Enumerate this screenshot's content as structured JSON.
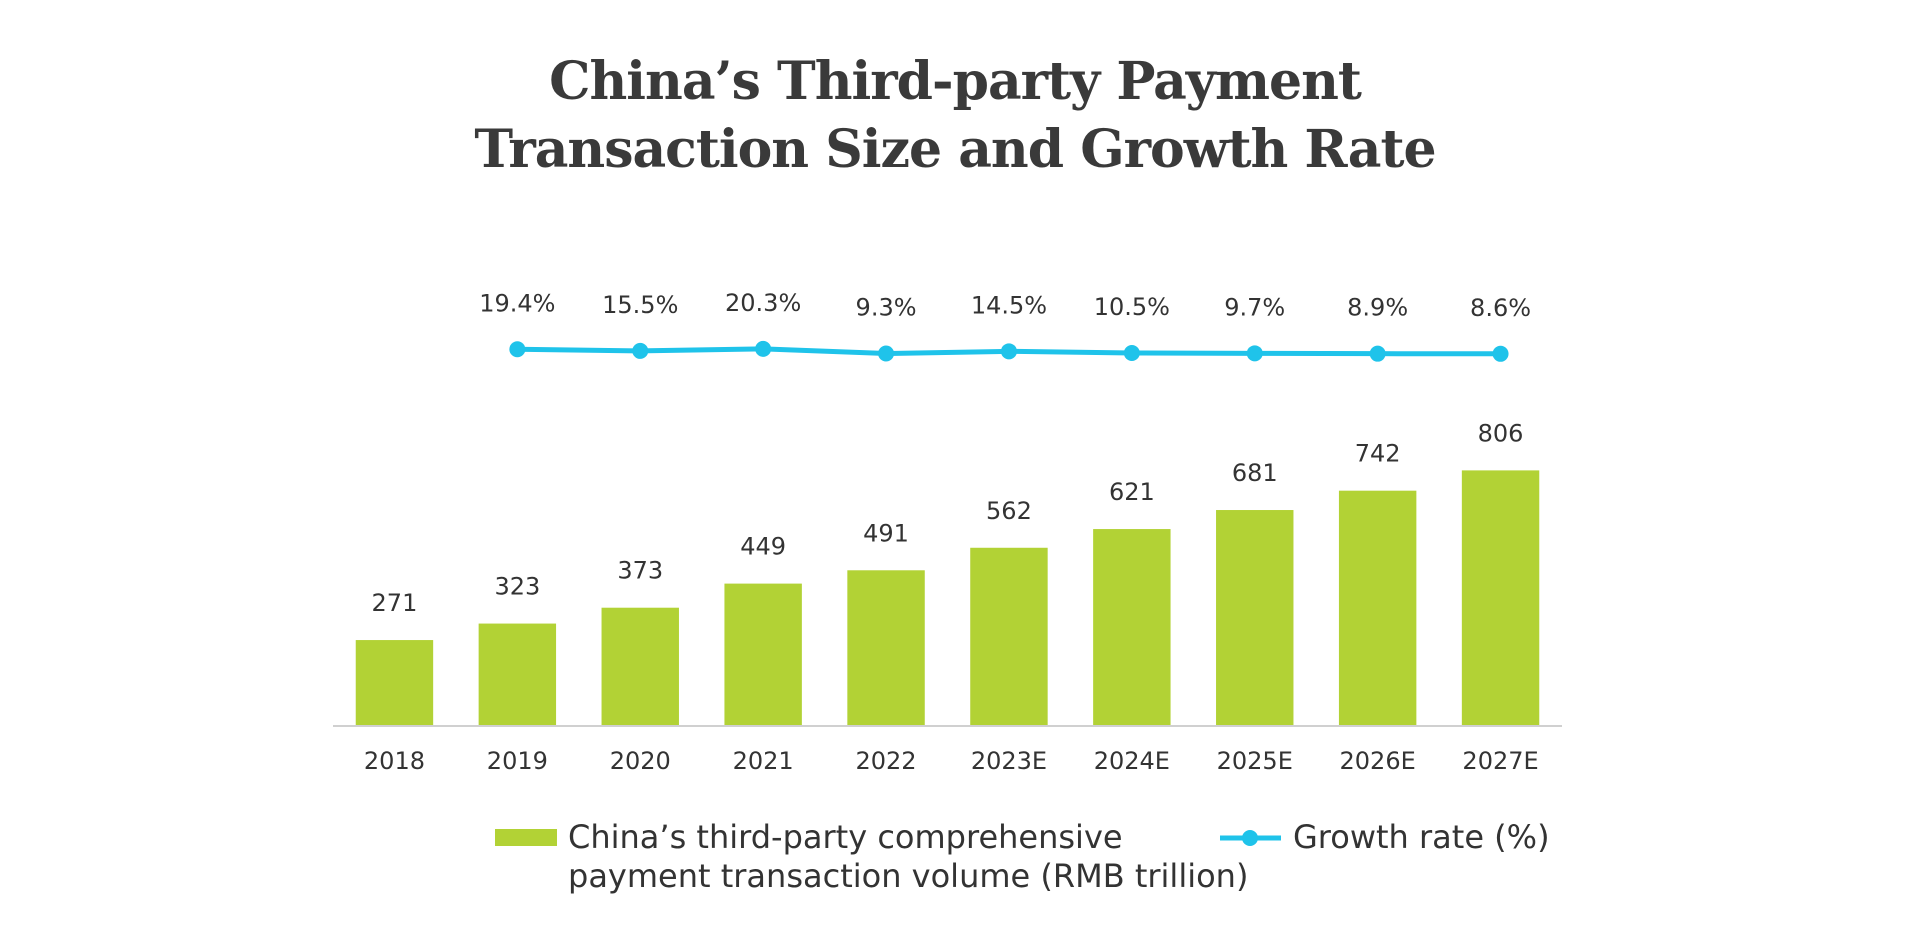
{
  "chart_data": {
    "type": "bar_line",
    "title": "China’s Third-party Payment\nTransaction Size and Growth Rate",
    "categories": [
      "2018",
      "2019",
      "2020",
      "2021",
      "2022",
      "2023E",
      "2024E",
      "2025E",
      "2026E",
      "2027E"
    ],
    "series": [
      {
        "name": "China’s third-party comprehensive\npayment transaction volume (RMB trillion)",
        "type": "bar",
        "color": "#b2d235",
        "values": [
          271,
          323,
          373,
          449,
          491,
          562,
          621,
          681,
          742,
          806
        ]
      },
      {
        "name": "Growth rate (%)",
        "type": "line",
        "axis": "y2",
        "color": "#1fc3ea",
        "values": [
          null,
          19.4,
          15.5,
          20.3,
          9.3,
          14.5,
          10.5,
          9.7,
          8.9,
          8.6
        ],
        "value_labels": [
          null,
          "19.4%",
          "15.5%",
          "20.3%",
          "9.3%",
          "14.5%",
          "10.5%",
          "9.7%",
          "8.9%",
          "8.6%"
        ]
      }
    ],
    "ylim": [
      0,
      1400
    ],
    "y2lim": [
      -880,
      180
    ]
  }
}
